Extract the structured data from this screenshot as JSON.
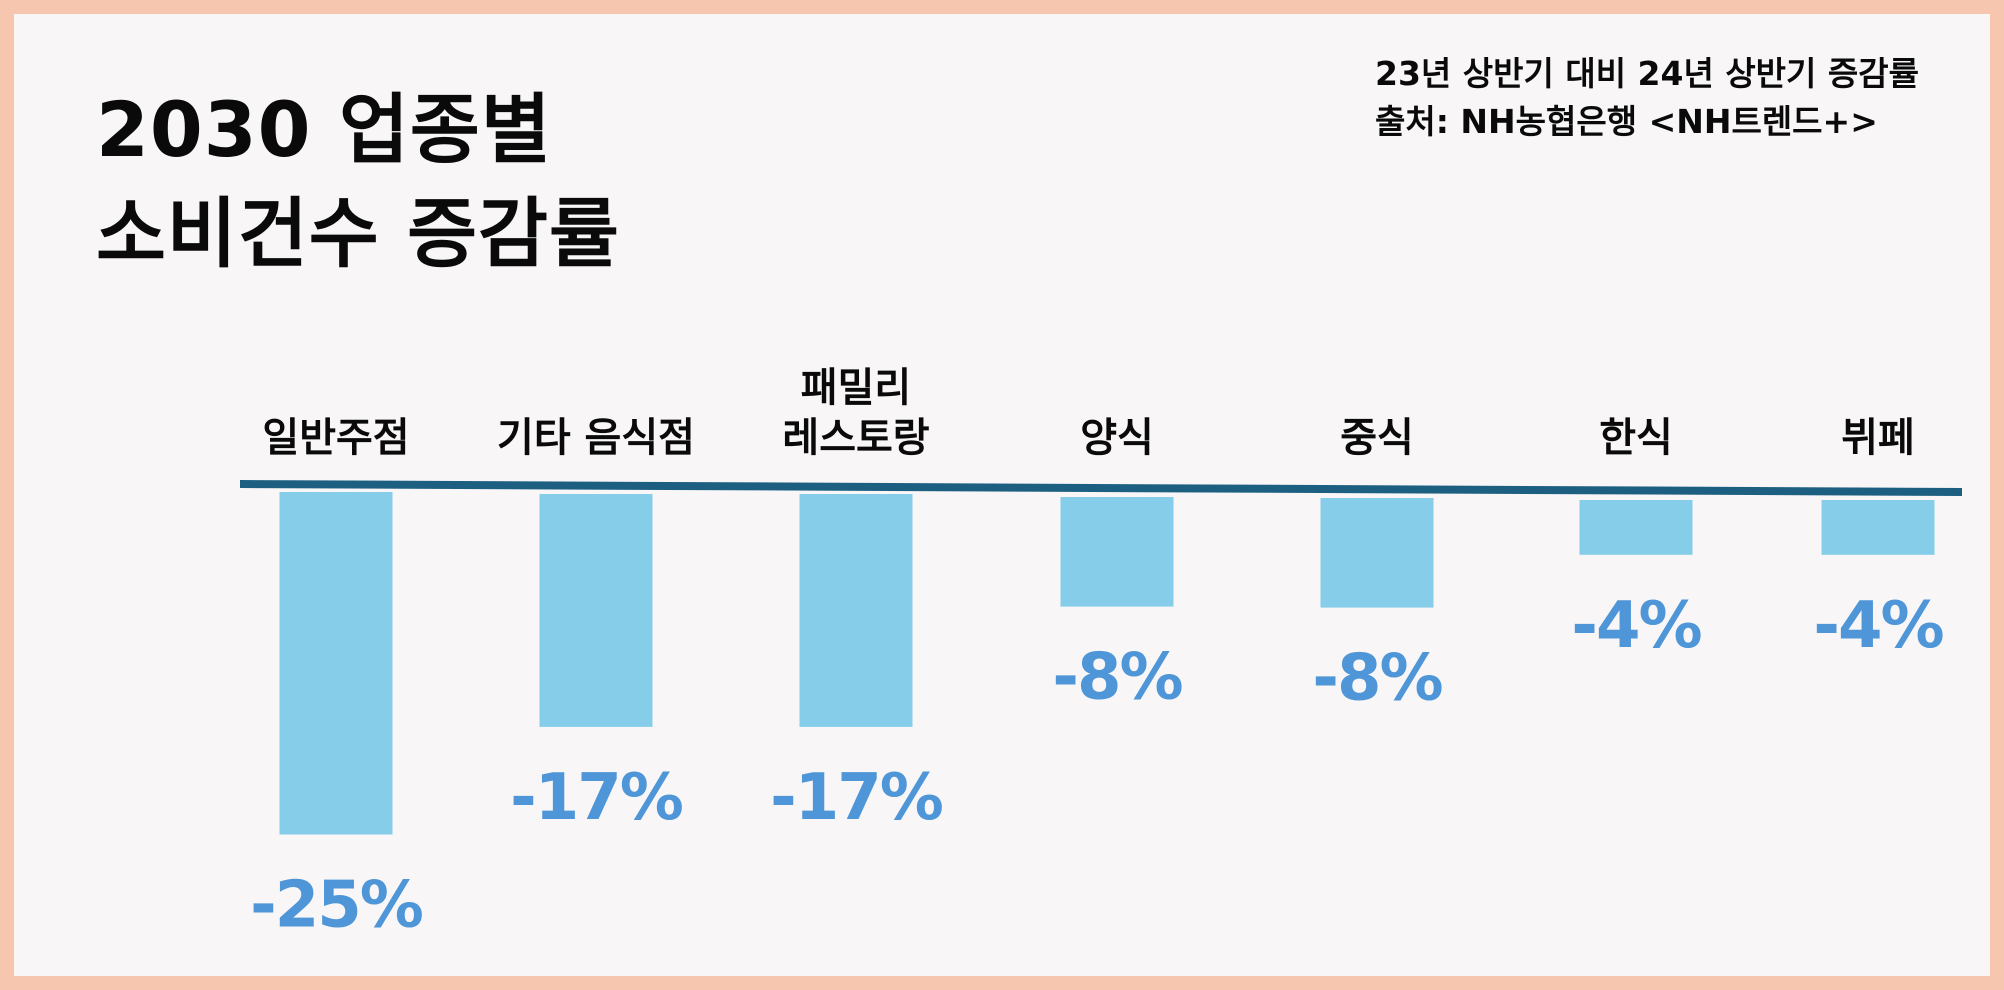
{
  "title": {
    "line1": "2030 업종별",
    "line2": "소비건수 증감률"
  },
  "subtitle": {
    "line1": "23년 상반기 대비 24년 상반기 증감률",
    "line2": "출처: NH농협은행 <NH트렌드+>"
  },
  "colors": {
    "bar": "#86cdea",
    "value_label": "#4e96d7",
    "baseline": "#1c5f80",
    "border": "#f7c6ae",
    "background": "#f8f6f7"
  },
  "chart_data": {
    "type": "bar",
    "orientation": "vertical",
    "categories": [
      [
        "일반주점"
      ],
      [
        "기타 음식점"
      ],
      [
        "패밀리",
        "레스토랑"
      ],
      [
        "양식"
      ],
      [
        "중식"
      ],
      [
        "한식"
      ],
      [
        "뷔페"
      ]
    ],
    "values": [
      -25,
      -17,
      -17,
      -8,
      -8,
      -4,
      -4
    ],
    "value_labels": [
      "-25%",
      "-17%",
      "-17%",
      "-8%",
      "-8%",
      "-4%",
      "-4%"
    ],
    "ylim": [
      -25,
      0
    ],
    "grid": false,
    "legend": "none"
  }
}
